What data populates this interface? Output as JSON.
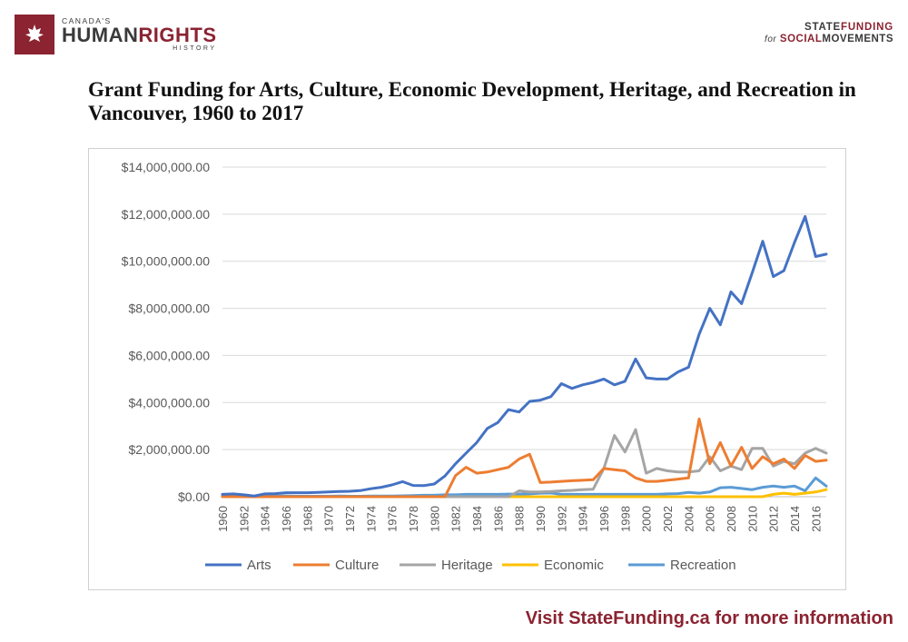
{
  "header": {
    "left_logo": {
      "top": "CANADA'S",
      "main_a": "HUMAN",
      "main_b": "RIGHTS",
      "bottom": "HISTORY"
    },
    "right_logo": {
      "a": "STATE",
      "b": "FUNDING",
      "c": "for",
      "d": "SOCIAL",
      "e": "MOVEMENTS"
    }
  },
  "footer": {
    "text": "Visit StateFunding.ca for more information"
  },
  "chart_data": {
    "type": "line",
    "title": "Grant Funding for Arts, Culture, Economic Development, Heritage, and Recreation in Vancouver, 1960 to 2017",
    "xlabel": "",
    "ylabel": "",
    "ylim": [
      0,
      14000000
    ],
    "yticks": [
      "$0.00",
      "$2,000,000.00",
      "$4,000,000.00",
      "$6,000,000.00",
      "$8,000,000.00",
      "$10,000,000.00",
      "$12,000,000.00",
      "$14,000,000.00"
    ],
    "grid": true,
    "legend_position": "bottom",
    "x": [
      1960,
      1961,
      1962,
      1963,
      1964,
      1965,
      1966,
      1967,
      1968,
      1969,
      1970,
      1971,
      1972,
      1973,
      1974,
      1975,
      1976,
      1977,
      1978,
      1979,
      1980,
      1981,
      1982,
      1983,
      1984,
      1985,
      1986,
      1987,
      1988,
      1989,
      1990,
      1991,
      1992,
      1993,
      1994,
      1995,
      1996,
      1997,
      1998,
      1999,
      2000,
      2001,
      2002,
      2003,
      2004,
      2005,
      2006,
      2007,
      2008,
      2009,
      2010,
      2011,
      2012,
      2013,
      2014,
      2015,
      2016,
      2017
    ],
    "series": [
      {
        "name": "Arts",
        "color": "#4472c4",
        "values": [
          100000,
          120000,
          80000,
          30000,
          120000,
          130000,
          170000,
          170000,
          170000,
          180000,
          200000,
          220000,
          230000,
          260000,
          340000,
          400000,
          500000,
          640000,
          480000,
          470000,
          540000,
          880000,
          1400000,
          1850000,
          2300000,
          2900000,
          3150000,
          3700000,
          3600000,
          4050000,
          4100000,
          4250000,
          4800000,
          4600000,
          4750000,
          4850000,
          5000000,
          4750000,
          4900000,
          5850000,
          5050000,
          5000000,
          5000000,
          5300000,
          5500000,
          6900000,
          8000000,
          7300000,
          8700000,
          8200000,
          9500000,
          10850000,
          9350000,
          9600000,
          10800000,
          11900000,
          10200000,
          10300000
        ]
      },
      {
        "name": "Culture",
        "color": "#ed7d31",
        "values": [
          0,
          0,
          0,
          0,
          0,
          0,
          0,
          0,
          0,
          0,
          0,
          0,
          0,
          0,
          0,
          0,
          0,
          0,
          0,
          0,
          0,
          0,
          900000,
          1250000,
          1000000,
          1050000,
          1150000,
          1250000,
          1600000,
          1800000,
          600000,
          620000,
          650000,
          680000,
          700000,
          720000,
          1200000,
          1150000,
          1100000,
          800000,
          650000,
          650000,
          700000,
          750000,
          800000,
          3300000,
          1400000,
          2300000,
          1300000,
          2100000,
          1200000,
          1700000,
          1400000,
          1600000,
          1200000,
          1750000,
          1500000,
          1550000
        ]
      },
      {
        "name": "Heritage",
        "color": "#a5a5a5",
        "values": [
          0,
          0,
          0,
          0,
          0,
          0,
          0,
          0,
          0,
          0,
          0,
          0,
          0,
          0,
          0,
          0,
          0,
          0,
          0,
          0,
          0,
          0,
          0,
          0,
          0,
          0,
          0,
          0,
          250000,
          200000,
          200000,
          220000,
          250000,
          270000,
          300000,
          320000,
          1200000,
          2600000,
          1900000,
          2850000,
          1000000,
          1200000,
          1100000,
          1050000,
          1050000,
          1100000,
          1700000,
          1100000,
          1300000,
          1150000,
          2050000,
          2050000,
          1300000,
          1500000,
          1400000,
          1850000,
          2050000,
          1850000
        ]
      },
      {
        "name": "Economic",
        "color": "#ffc000",
        "values": [
          0,
          100000,
          0,
          0,
          0,
          0,
          0,
          0,
          0,
          0,
          0,
          0,
          0,
          0,
          0,
          0,
          0,
          0,
          0,
          0,
          0,
          0,
          0,
          0,
          0,
          0,
          0,
          0,
          0,
          0,
          0,
          0,
          0,
          0,
          0,
          0,
          0,
          0,
          0,
          0,
          0,
          0,
          0,
          0,
          0,
          0,
          0,
          0,
          0,
          0,
          0,
          0,
          100000,
          150000,
          100000,
          150000,
          200000,
          300000
        ]
      },
      {
        "name": "Recreation",
        "color": "#5b9bd5",
        "values": [
          50000,
          40000,
          30000,
          20000,
          20000,
          30000,
          30000,
          20000,
          20000,
          20000,
          20000,
          30000,
          20000,
          20000,
          30000,
          30000,
          30000,
          40000,
          50000,
          60000,
          60000,
          80000,
          80000,
          100000,
          100000,
          100000,
          100000,
          110000,
          110000,
          120000,
          150000,
          160000,
          100000,
          100000,
          100000,
          100000,
          100000,
          100000,
          100000,
          100000,
          100000,
          100000,
          120000,
          130000,
          180000,
          150000,
          200000,
          380000,
          400000,
          350000,
          300000,
          400000,
          450000,
          400000,
          450000,
          250000,
          800000,
          450000
        ]
      }
    ]
  }
}
